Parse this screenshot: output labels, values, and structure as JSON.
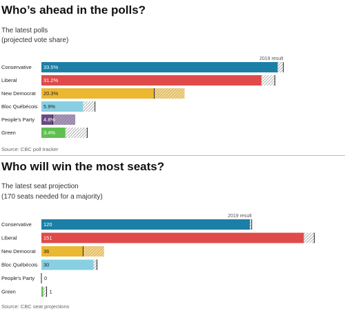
{
  "chart_data": [
    {
      "type": "bar",
      "title": "Who’s ahead in the polls?",
      "subtitle_lines": [
        "The latest polls",
        "(projected vote share)"
      ],
      "reference_label": "2019 result",
      "source": "Source: CBC poll tracker",
      "categories": [
        "Conservative",
        "Liberal",
        "New Democrat",
        "Bloc Québécois",
        "People's Party",
        "Green"
      ],
      "values": [
        33.5,
        31.2,
        20.3,
        5.9,
        4.8,
        3.4
      ],
      "value_labels": [
        "33.5%",
        "31.2%",
        "20.3%",
        "5.9%",
        "4.8%",
        "3.4%"
      ],
      "reference_values": [
        34.3,
        33.1,
        16.0,
        7.6,
        1.6,
        6.5
      ],
      "colors": [
        "#1c7fa6",
        "#e04a4b",
        "#ecb731",
        "#88cfe2",
        "#6a4b87",
        "#5fbf50"
      ],
      "label_dark": [
        false,
        false,
        true,
        true,
        false,
        false
      ],
      "xlim": [
        0,
        36
      ]
    },
    {
      "type": "bar",
      "title": "Who will win the most seats?",
      "subtitle_lines": [
        "The latest seat projection",
        "(170 seats needed for a majority)"
      ],
      "reference_label": "2019 result",
      "source": "Source: CBC seat projections",
      "categories": [
        "Conservative",
        "Liberal",
        "New Democrat",
        "Bloc Québécois",
        "People's Party",
        "Green"
      ],
      "values": [
        120,
        151,
        36,
        30,
        0,
        1
      ],
      "value_labels": [
        "120",
        "151",
        "36",
        "30",
        "0",
        "1"
      ],
      "reference_values": [
        121,
        157,
        24,
        32,
        0,
        3
      ],
      "colors": [
        "#1c7fa6",
        "#e04a4b",
        "#ecb731",
        "#88cfe2",
        "#6a4b87",
        "#5fbf50"
      ],
      "label_dark": [
        false,
        false,
        true,
        true,
        true,
        true
      ],
      "xlim": [
        0,
        160
      ]
    }
  ]
}
